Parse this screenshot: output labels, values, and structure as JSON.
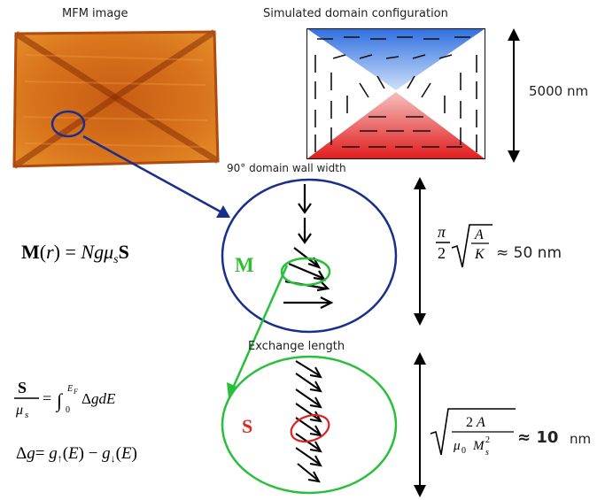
{
  "labels": {
    "mfm_title": "MFM image",
    "sim_title": "Simulated domain configuration",
    "domain_wall_width": "90° domain wall width",
    "exchange_length": "Exchange length"
  },
  "dimensions": {
    "big_scale": "5000 nm",
    "wall_value": "≈ 50 nm",
    "exchange_value": "≈ 10",
    "exchange_unit": "nm"
  },
  "equations": {
    "magnetization": "M(r) = Ngμ_s S",
    "spin_integral": "S/μ_s = ∫₀^{E_F} Δg dE",
    "delta_g": "Δg = g↑(E) − g↓(E)",
    "wall_width": "π/2 √(A/K)",
    "exchange": "√(2A / μ₀ M_s²)"
  },
  "symbols": {
    "M": "M",
    "S": "S"
  },
  "colors": {
    "blue_circle": "#1a2e8c",
    "green_circle": "#27c03a",
    "red_ellipse": "#e02020",
    "M_label": "#2fbf2f",
    "S_label": "#e02525"
  }
}
